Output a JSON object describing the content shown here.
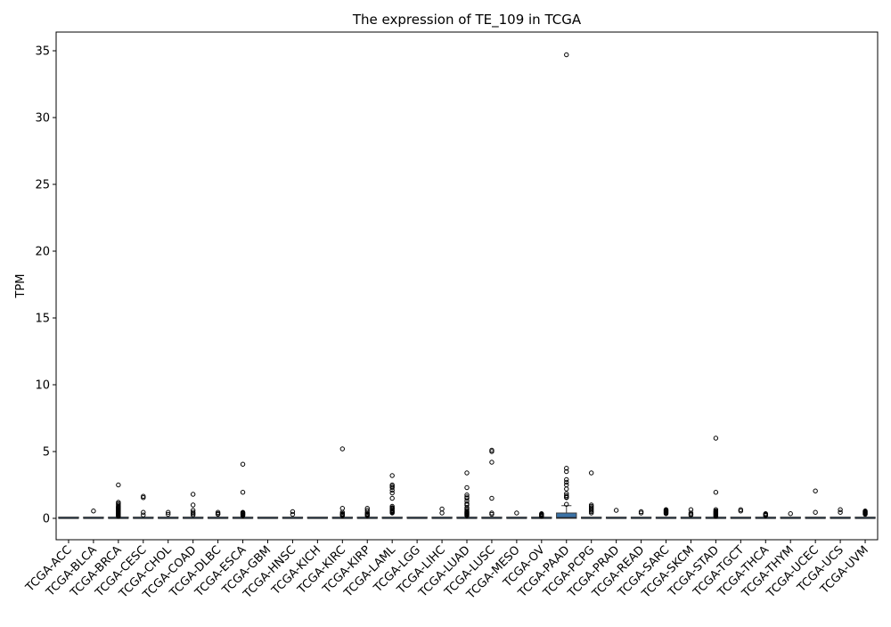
{
  "chart_data": {
    "type": "box",
    "title": "The expression of TE_109 in TCGA",
    "xlabel": "",
    "ylabel": "TPM",
    "ylim": [
      -1.6,
      36.4
    ],
    "yticks": [
      0,
      5,
      10,
      15,
      20,
      25,
      30,
      35
    ],
    "grid": false,
    "legend": "none",
    "colors": {
      "box": "#3a72a6",
      "median": "#1f1f1f",
      "whisker": "#3c3c3c",
      "axis": "#000000"
    },
    "categories": [
      "TCGA-ACC",
      "TCGA-BLCA",
      "TCGA-BRCA",
      "TCGA-CESC",
      "TCGA-CHOL",
      "TCGA-COAD",
      "TCGA-DLBC",
      "TCGA-ESCA",
      "TCGA-GBM",
      "TCGA-HNSC",
      "TCGA-KICH",
      "TCGA-KIRC",
      "TCGA-KIRP",
      "TCGA-LAML",
      "TCGA-LGG",
      "TCGA-LIHC",
      "TCGA-LUAD",
      "TCGA-LUSC",
      "TCGA-MESO",
      "TCGA-OV",
      "TCGA-PAAD",
      "TCGA-PCPG",
      "TCGA-PRAD",
      "TCGA-READ",
      "TCGA-SARC",
      "TCGA-SKCM",
      "TCGA-STAD",
      "TCGA-TGCT",
      "TCGA-THCA",
      "TCGA-THYM",
      "TCGA-UCEC",
      "TCGA-UCS",
      "TCGA-UVM"
    ],
    "boxes": [
      {
        "q1": 0,
        "median": 0,
        "q3": 0,
        "whisker_low": 0,
        "whisker_high": 0,
        "outliers": []
      },
      {
        "q1": 0,
        "median": 0,
        "q3": 0,
        "whisker_low": 0,
        "whisker_high": 0,
        "outliers": [
          0.55
        ]
      },
      {
        "q1": 0,
        "median": 0,
        "q3": 0,
        "whisker_low": 0,
        "whisker_high": 0,
        "outliers": [
          2.5,
          1.2,
          1.1,
          1.0,
          0.9,
          0.85,
          0.8,
          0.75,
          0.7,
          0.65,
          0.6,
          0.55,
          0.5,
          0.45,
          0.4,
          0.35,
          0.3,
          0.25,
          0.2,
          0.15
        ]
      },
      {
        "q1": 0,
        "median": 0,
        "q3": 0,
        "whisker_low": 0,
        "whisker_high": 0,
        "outliers": [
          1.65,
          1.55,
          0.45,
          0.25
        ]
      },
      {
        "q1": 0,
        "median": 0,
        "q3": 0,
        "whisker_low": 0,
        "whisker_high": 0,
        "outliers": [
          0.45,
          0.3
        ]
      },
      {
        "q1": 0,
        "median": 0,
        "q3": 0,
        "whisker_low": 0,
        "whisker_high": 0,
        "outliers": [
          1.8,
          1.0,
          0.6,
          0.45,
          0.35,
          0.25
        ]
      },
      {
        "q1": 0,
        "median": 0,
        "q3": 0,
        "whisker_low": 0,
        "whisker_high": 0,
        "outliers": [
          0.45,
          0.35,
          0.3
        ]
      },
      {
        "q1": 0,
        "median": 0,
        "q3": 0,
        "whisker_low": 0,
        "whisker_high": 0,
        "outliers": [
          4.05,
          1.95,
          0.45,
          0.4,
          0.35,
          0.3,
          0.25,
          0.2
        ]
      },
      {
        "q1": 0,
        "median": 0,
        "q3": 0,
        "whisker_low": 0,
        "whisker_high": 0,
        "outliers": []
      },
      {
        "q1": 0,
        "median": 0,
        "q3": 0,
        "whisker_low": 0,
        "whisker_high": 0,
        "outliers": [
          0.5,
          0.3
        ]
      },
      {
        "q1": 0,
        "median": 0,
        "q3": 0,
        "whisker_low": 0,
        "whisker_high": 0,
        "outliers": []
      },
      {
        "q1": 0,
        "median": 0,
        "q3": 0,
        "whisker_low": 0,
        "whisker_high": 0,
        "outliers": [
          5.2,
          0.75,
          0.45,
          0.35,
          0.3,
          0.25,
          0.2
        ]
      },
      {
        "q1": 0,
        "median": 0,
        "q3": 0,
        "whisker_low": 0,
        "whisker_high": 0,
        "outliers": [
          0.75,
          0.6,
          0.45,
          0.35,
          0.3,
          0.25,
          0.2
        ]
      },
      {
        "q1": 0,
        "median": 0,
        "q3": 0,
        "whisker_low": 0,
        "whisker_high": 0,
        "outliers": [
          3.2,
          2.5,
          2.4,
          2.3,
          2.1,
          1.9,
          1.5,
          0.9,
          0.8,
          0.75,
          0.7,
          0.6,
          0.55,
          0.5,
          0.45,
          0.4
        ]
      },
      {
        "q1": 0,
        "median": 0,
        "q3": 0,
        "whisker_low": 0,
        "whisker_high": 0,
        "outliers": []
      },
      {
        "q1": 0,
        "median": 0,
        "q3": 0,
        "whisker_low": 0,
        "whisker_high": 0,
        "outliers": [
          0.7,
          0.4
        ]
      },
      {
        "q1": 0,
        "median": 0,
        "q3": 0,
        "whisker_low": 0,
        "whisker_high": 0,
        "outliers": [
          3.4,
          2.3,
          1.75,
          1.6,
          1.5,
          1.3,
          1.1,
          1.0,
          0.8,
          0.7,
          0.6,
          0.5,
          0.45,
          0.4,
          0.35,
          0.3,
          0.25,
          0.2
        ]
      },
      {
        "q1": 0,
        "median": 0,
        "q3": 0,
        "whisker_low": 0,
        "whisker_high": 0,
        "outliers": [
          5.1,
          5.0,
          4.2,
          1.5,
          0.4,
          0.3
        ]
      },
      {
        "q1": 0,
        "median": 0,
        "q3": 0,
        "whisker_low": 0,
        "whisker_high": 0,
        "outliers": [
          0.4
        ]
      },
      {
        "q1": 0,
        "median": 0,
        "q3": 0,
        "whisker_low": 0,
        "whisker_high": 0,
        "outliers": [
          0.35,
          0.3,
          0.25,
          0.2,
          0.15
        ]
      },
      {
        "q1": 0,
        "median": 0.05,
        "q3": 0.4,
        "whisker_low": 0,
        "whisker_high": 0.95,
        "outliers": [
          34.7,
          3.75,
          3.5,
          2.9,
          2.7,
          2.5,
          2.2,
          1.85,
          1.7,
          1.6,
          1.55,
          1.05
        ]
      },
      {
        "q1": 0,
        "median": 0,
        "q3": 0,
        "whisker_low": 0,
        "whisker_high": 0,
        "outliers": [
          3.4,
          1.0,
          0.9,
          0.8,
          0.7,
          0.6,
          0.5,
          0.4
        ]
      },
      {
        "q1": 0,
        "median": 0,
        "q3": 0,
        "whisker_low": 0,
        "whisker_high": 0,
        "outliers": [
          0.6
        ]
      },
      {
        "q1": 0,
        "median": 0,
        "q3": 0,
        "whisker_low": 0,
        "whisker_high": 0,
        "outliers": [
          0.5,
          0.4
        ]
      },
      {
        "q1": 0,
        "median": 0,
        "q3": 0,
        "whisker_low": 0,
        "whisker_high": 0,
        "outliers": [
          0.65,
          0.6,
          0.55,
          0.5,
          0.45,
          0.4,
          0.35
        ]
      },
      {
        "q1": 0,
        "median": 0,
        "q3": 0,
        "whisker_low": 0,
        "whisker_high": 0,
        "outliers": [
          0.65,
          0.4,
          0.3,
          0.25
        ]
      },
      {
        "q1": 0,
        "median": 0,
        "q3": 0,
        "whisker_low": 0,
        "whisker_high": 0,
        "outliers": [
          6.0,
          1.95,
          0.65,
          0.55,
          0.5,
          0.45,
          0.4,
          0.35,
          0.3,
          0.25,
          0.2,
          0.15
        ]
      },
      {
        "q1": 0,
        "median": 0,
        "q3": 0,
        "whisker_low": 0,
        "whisker_high": 0,
        "outliers": [
          0.65,
          0.55
        ]
      },
      {
        "q1": 0,
        "median": 0,
        "q3": 0,
        "whisker_low": 0,
        "whisker_high": 0,
        "outliers": [
          0.35,
          0.3,
          0.25,
          0.2
        ]
      },
      {
        "q1": 0,
        "median": 0,
        "q3": 0,
        "whisker_low": 0,
        "whisker_high": 0,
        "outliers": [
          0.35
        ]
      },
      {
        "q1": 0,
        "median": 0,
        "q3": 0,
        "whisker_low": 0,
        "whisker_high": 0,
        "outliers": [
          2.05,
          0.45
        ]
      },
      {
        "q1": 0,
        "median": 0,
        "q3": 0,
        "whisker_low": 0,
        "whisker_high": 0,
        "outliers": [
          0.65,
          0.45
        ]
      },
      {
        "q1": 0,
        "median": 0,
        "q3": 0,
        "whisker_low": 0,
        "whisker_high": 0,
        "outliers": [
          0.55,
          0.5,
          0.45,
          0.4,
          0.35,
          0.3
        ]
      }
    ]
  }
}
